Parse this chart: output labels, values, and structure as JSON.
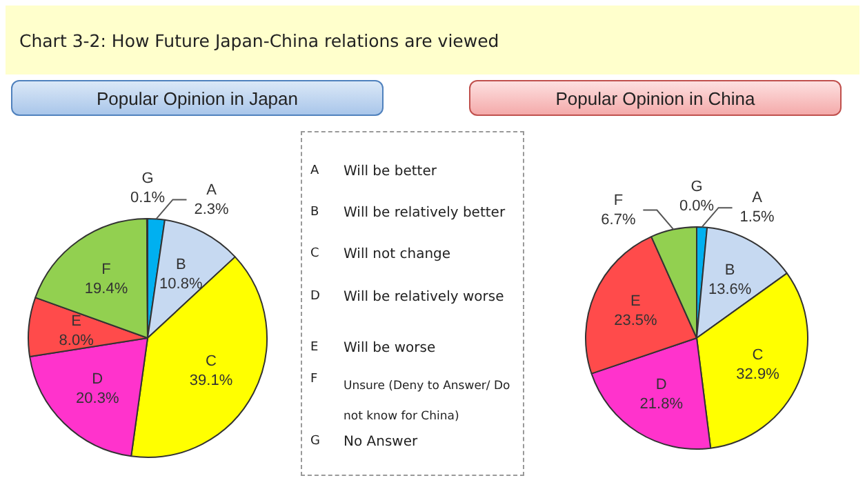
{
  "chart_data": [
    {
      "type": "pie",
      "title": "Chart 3-2: How Future Japan-China relations are viewed",
      "subtitle": "Popular Opinion in Japan",
      "categories": [
        "A",
        "B",
        "C",
        "D",
        "E",
        "F",
        "G"
      ],
      "values": [
        2.3,
        10.8,
        39.1,
        20.3,
        8.0,
        19.4,
        0.1
      ],
      "value_labels": [
        "2.3%",
        "10.8%",
        "39.1%",
        "20.3%",
        "8.0%",
        "19.4%",
        "0.1%"
      ],
      "colors": [
        "#00b0f0",
        "#c6d9f1",
        "#ffff00",
        "#ff33cc",
        "#ff4b4b",
        "#92d050",
        "#7030a0"
      ]
    },
    {
      "type": "other",
      "annotations": [
        "A",
        "Will be better",
        "B",
        "Will be relatively better",
        "C",
        "Will not change",
        "D",
        "Will be relatively worse",
        "E",
        "Will be worse",
        "F",
        "Unsure (Deny to Answer/ Do not know for China)",
        "G",
        "No Answer"
      ]
    },
    {
      "type": "pie",
      "subtitle": "Popular Opinion in China",
      "categories": [
        "A",
        "B",
        "C",
        "D",
        "E",
        "F",
        "G"
      ],
      "values": [
        1.5,
        13.6,
        32.9,
        21.8,
        23.5,
        6.7,
        0.0
      ],
      "value_labels": [
        "1.5%",
        "13.6%",
        "32.9%",
        "21.8%",
        "23.5%",
        "6.7%",
        "0.0%"
      ],
      "colors": [
        "#00b0f0",
        "#c6d9f1",
        "#ffff00",
        "#ff33cc",
        "#ff4b4b",
        "#92d050",
        "#7030a0"
      ]
    }
  ]
}
